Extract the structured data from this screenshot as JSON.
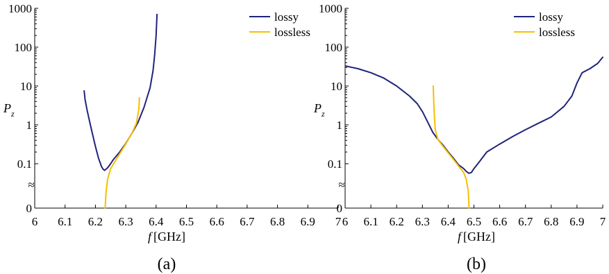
{
  "chart_data": [
    {
      "type": "line",
      "panel_label": "(a)",
      "xlabel_italic": "f",
      "xlabel_unit": "[GHz]",
      "ylabel_main": "P",
      "ylabel_sub": "z",
      "xlim": [
        6.0,
        7.0
      ],
      "x_ticks": [
        "6",
        "6.1",
        "6.2",
        "6.3",
        "6.4",
        "6.5",
        "6.6",
        "6.7",
        "6.8",
        "6.9",
        "7"
      ],
      "y_scale": "log with break to 0",
      "y_ticks": [
        "1000",
        "100",
        "10",
        "1",
        "0.1",
        "0"
      ],
      "y_break_symbol": "≈",
      "legend_position": "top-right",
      "series": [
        {
          "name": "lossy",
          "color": "#1f237a",
          "x": [
            6.163,
            6.166,
            6.172,
            6.18,
            6.19,
            6.2,
            6.21,
            6.22,
            6.225,
            6.23,
            6.24,
            6.25,
            6.26,
            6.28,
            6.3,
            6.32,
            6.34,
            6.36,
            6.38,
            6.39,
            6.395,
            6.4,
            6.403
          ],
          "y": [
            7.5,
            4.5,
            2.5,
            1.3,
            0.6,
            0.28,
            0.14,
            0.075,
            0.058,
            0.05,
            0.065,
            0.1,
            0.13,
            0.2,
            0.33,
            0.6,
            1.15,
            2.8,
            9,
            25,
            60,
            200,
            700
          ]
        },
        {
          "name": "lossless",
          "color": "#f5c000",
          "x": [
            6.232,
            6.235,
            6.24,
            6.25,
            6.26,
            6.28,
            6.3,
            6.32,
            6.335,
            6.343,
            6.345
          ],
          "y": [
            0,
            0.005,
            0.02,
            0.06,
            0.1,
            0.18,
            0.32,
            0.6,
            1.1,
            2.5,
            5
          ]
        }
      ]
    },
    {
      "type": "line",
      "panel_label": "(b)",
      "xlabel_italic": "f",
      "xlabel_unit": "[GHz]",
      "ylabel_main": "P",
      "ylabel_sub": "z",
      "xlim": [
        6.0,
        7.0
      ],
      "x_ticks": [
        "6",
        "6.1",
        "6.2",
        "6.3",
        "6.4",
        "6.5",
        "6.6",
        "6.7",
        "6.8",
        "6.9",
        "7"
      ],
      "y_scale": "log with break to 0",
      "y_ticks": [
        "1000",
        "100",
        "10",
        "1",
        "0.1",
        "0"
      ],
      "y_break_symbol": "≈",
      "legend_position": "top-right",
      "series": [
        {
          "name": "lossy",
          "color": "#1f237a",
          "x": [
            6.0,
            6.05,
            6.1,
            6.15,
            6.2,
            6.25,
            6.28,
            6.3,
            6.32,
            6.34,
            6.36,
            6.38,
            6.4,
            6.42,
            6.44,
            6.46,
            6.47,
            6.48,
            6.49,
            6.5,
            6.52,
            6.55,
            6.6,
            6.65,
            6.7,
            6.75,
            6.8,
            6.85,
            6.88,
            6.9,
            6.92,
            6.95,
            6.98,
            7.0
          ],
          "y": [
            33,
            28,
            22,
            16,
            10,
            5.5,
            3.5,
            2.2,
            1.2,
            0.65,
            0.42,
            0.3,
            0.2,
            0.14,
            0.09,
            0.06,
            0.045,
            0.037,
            0.04,
            0.06,
            0.11,
            0.2,
            0.32,
            0.5,
            0.75,
            1.1,
            1.6,
            3,
            5.5,
            12,
            22,
            28,
            38,
            55
          ]
        },
        {
          "name": "lossless",
          "color": "#f5c000",
          "x": [
            6.342,
            6.344,
            6.347,
            6.35,
            6.36,
            6.38,
            6.4,
            6.42,
            6.44,
            6.46,
            6.47,
            6.478,
            6.481
          ],
          "y": [
            10,
            4,
            1.5,
            0.75,
            0.42,
            0.28,
            0.19,
            0.13,
            0.08,
            0.04,
            0.02,
            0.006,
            0
          ]
        }
      ]
    }
  ]
}
